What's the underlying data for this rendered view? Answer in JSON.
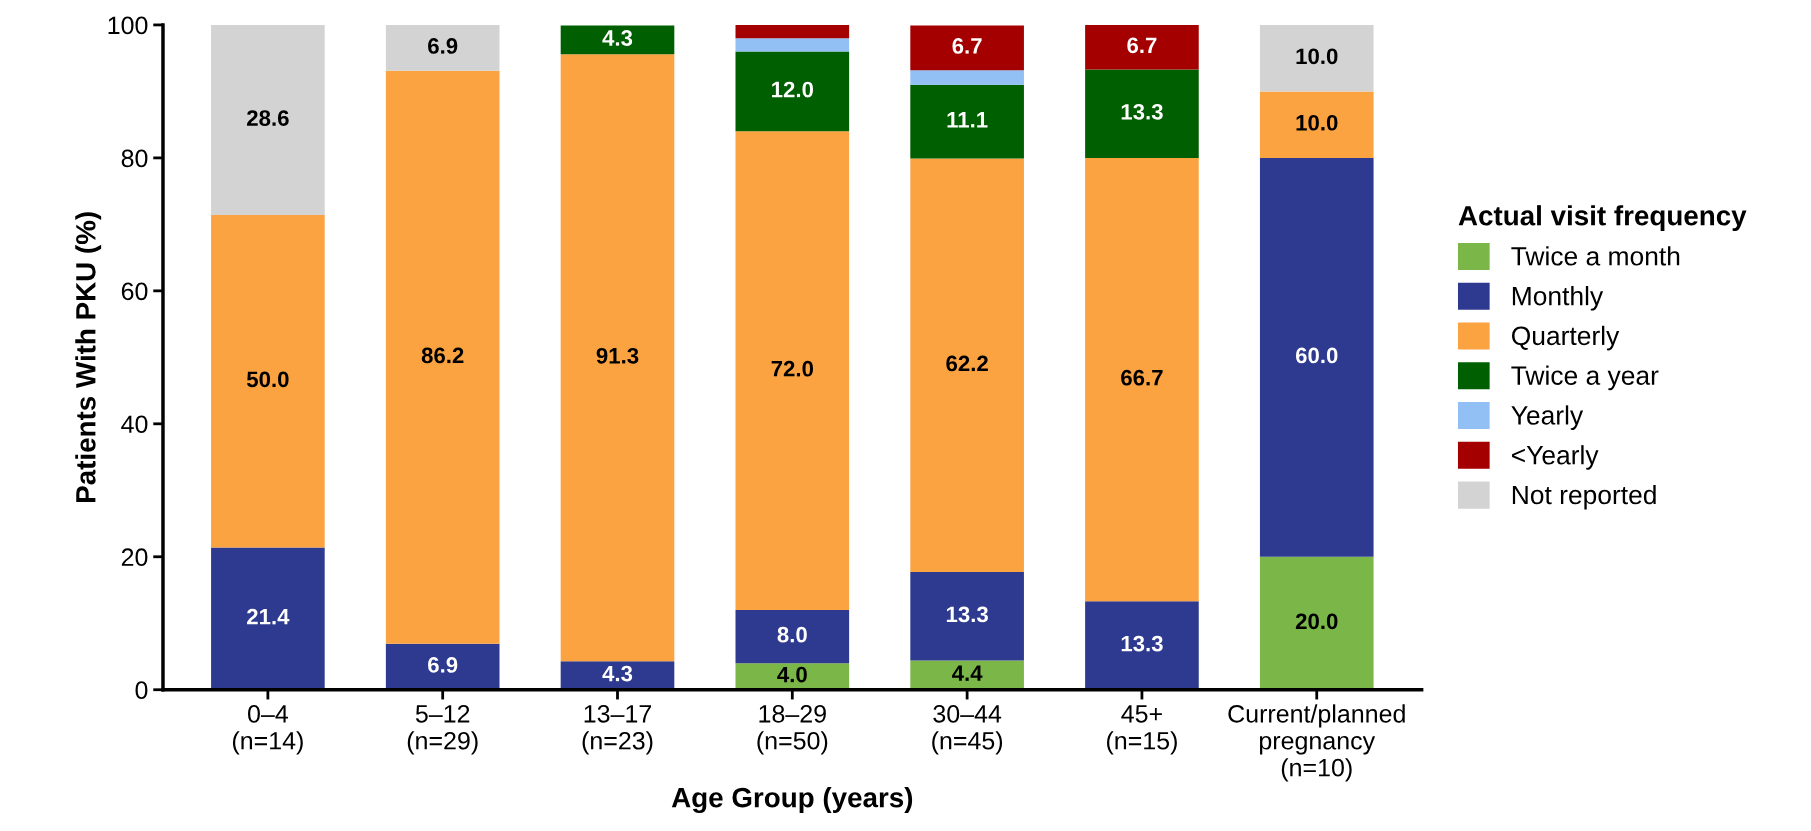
{
  "chart_data": {
    "type": "bar",
    "stacked": true,
    "xlabel": "Age Group (years)",
    "ylabel": "Patients With PKU (%)",
    "legend_title": "Actual visit frequency",
    "legend": "right",
    "categories": [
      "0–4\n(n=14)",
      "5–12\n(n=29)",
      "13–17\n(n=23)",
      "18–29\n(n=50)",
      "30–44\n(n=45)",
      "45+\n(n=15)",
      "Current/planned\npregnancy\n(n=10)"
    ],
    "ylim": [
      0,
      100
    ],
    "yticks": [
      0,
      20,
      40,
      60,
      80,
      100
    ],
    "grid": false,
    "series": [
      {
        "name": "Twice a month",
        "color": "#7ab648",
        "values": [
          null,
          null,
          null,
          4.0,
          4.4,
          null,
          20.0
        ],
        "value_labels": [
          null,
          null,
          null,
          "4.0",
          "4.4",
          null,
          "20.0"
        ]
      },
      {
        "name": "Monthly",
        "color": "#2e3a8f",
        "values": [
          21.4,
          6.9,
          4.3,
          8.0,
          13.3,
          13.3,
          60.0
        ],
        "value_labels": [
          "21.4",
          "6.9",
          "4.3",
          "8.0",
          "13.3",
          "13.3",
          "60.0"
        ]
      },
      {
        "name": "Quarterly",
        "color": "#fba341",
        "values": [
          50.0,
          86.2,
          91.3,
          72.0,
          62.2,
          66.7,
          10.0
        ],
        "value_labels": [
          "50.0",
          "86.2",
          "91.3",
          "72.0",
          "62.2",
          "66.7",
          "10.0"
        ]
      },
      {
        "name": "Twice a year",
        "color": "#005f00",
        "values": [
          null,
          null,
          4.3,
          12.0,
          11.1,
          13.3,
          null
        ],
        "value_labels": [
          null,
          null,
          "4.3",
          "12.0",
          "11.1",
          "13.3",
          null
        ]
      },
      {
        "name": "Yearly",
        "color": "#92c0f5",
        "values": [
          null,
          null,
          null,
          2.0,
          2.2,
          null,
          null
        ],
        "value_labels": [
          null,
          null,
          null,
          null,
          null,
          null,
          null
        ]
      },
      {
        "name": "<Yearly",
        "color": "#a50000",
        "values": [
          null,
          null,
          null,
          2.0,
          6.7,
          6.7,
          null
        ],
        "value_labels": [
          null,
          null,
          null,
          null,
          "6.7",
          "6.7",
          null
        ]
      },
      {
        "name": "Not reported",
        "color": "#d3d3d3",
        "values": [
          28.6,
          6.9,
          null,
          null,
          null,
          null,
          10.0
        ],
        "value_labels": [
          "28.6",
          "6.9",
          null,
          null,
          null,
          null,
          "10.0"
        ]
      }
    ]
  }
}
